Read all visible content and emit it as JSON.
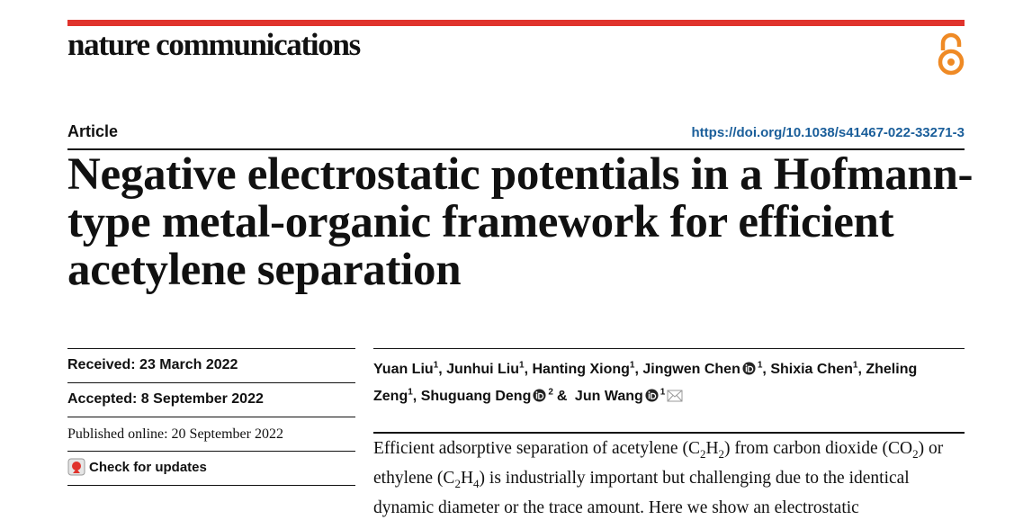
{
  "header": {
    "journal": "nature communications",
    "article_type": "Article",
    "doi": "https://doi.org/10.1038/s41467-022-33271-3"
  },
  "title": "Negative electrostatic potentials in a Hofmann-type metal-organic framework for efficient acetylene separation",
  "dates": {
    "received": "Received: 23 March 2022",
    "accepted": "Accepted: 8 September 2022",
    "published": "Published online: 20 September 2022"
  },
  "check_updates": "Check for updates",
  "authors": [
    {
      "name": "Yuan Liu",
      "affiliation": "1",
      "sep": ","
    },
    {
      "name": "Junhui Liu",
      "affiliation": "1",
      "sep": ","
    },
    {
      "name": "Hanting Xiong",
      "affiliation": "1",
      "sep": ","
    },
    {
      "name": "Jingwen Chen",
      "affiliation": "1",
      "sep": ",",
      "orcid": true
    },
    {
      "name": "Shixia Chen",
      "affiliation": "1",
      "sep": ","
    },
    {
      "name": "Zheling Zeng",
      "affiliation": "1",
      "sep": ","
    },
    {
      "name": "Shuguang Deng",
      "affiliation": "2",
      "sep": "&",
      "orcid": true
    },
    {
      "name": "Jun Wang",
      "affiliation": "1",
      "orcid": true,
      "email": true
    }
  ],
  "abstract": [
    "Efficient adsorptive separation of acetylene (C",
    "2",
    "H",
    "2",
    ") from carbon dioxide (CO",
    "2",
    ") or ethylene (C",
    "2",
    "H",
    "4",
    ") is industrially important but challenging due to the identical dynamic diameter or the trace amount. Here we show an electrostatic"
  ]
}
